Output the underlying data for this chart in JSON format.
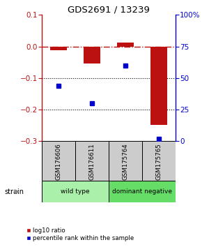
{
  "title": "GDS2691 / 13239",
  "samples": [
    "GSM176606",
    "GSM176611",
    "GSM175764",
    "GSM175765"
  ],
  "log10_ratio": [
    -0.012,
    -0.055,
    0.012,
    -0.248
  ],
  "percentile_rank": [
    44,
    30,
    60,
    2
  ],
  "bar_color": "#bb1111",
  "dot_color": "#0000cc",
  "ylim_left": [
    -0.3,
    0.1
  ],
  "ylim_right": [
    0,
    100
  ],
  "yticks_left": [
    0.1,
    0.0,
    -0.1,
    -0.2,
    -0.3
  ],
  "yticks_right": [
    100,
    75,
    50,
    25,
    0
  ],
  "hline_y": 0.0,
  "dotted_lines": [
    -0.1,
    -0.2
  ],
  "groups": [
    {
      "label": "wild type",
      "color": "#aaf0aa",
      "samples": [
        0,
        1
      ]
    },
    {
      "label": "dominant negative",
      "color": "#66dd66",
      "samples": [
        2,
        3
      ]
    }
  ],
  "strain_label": "strain",
  "legend_ratio_label": "log10 ratio",
  "legend_pct_label": "percentile rank within the sample",
  "bar_width": 0.5,
  "sample_box_color": "#cccccc",
  "background_color": "#ffffff"
}
